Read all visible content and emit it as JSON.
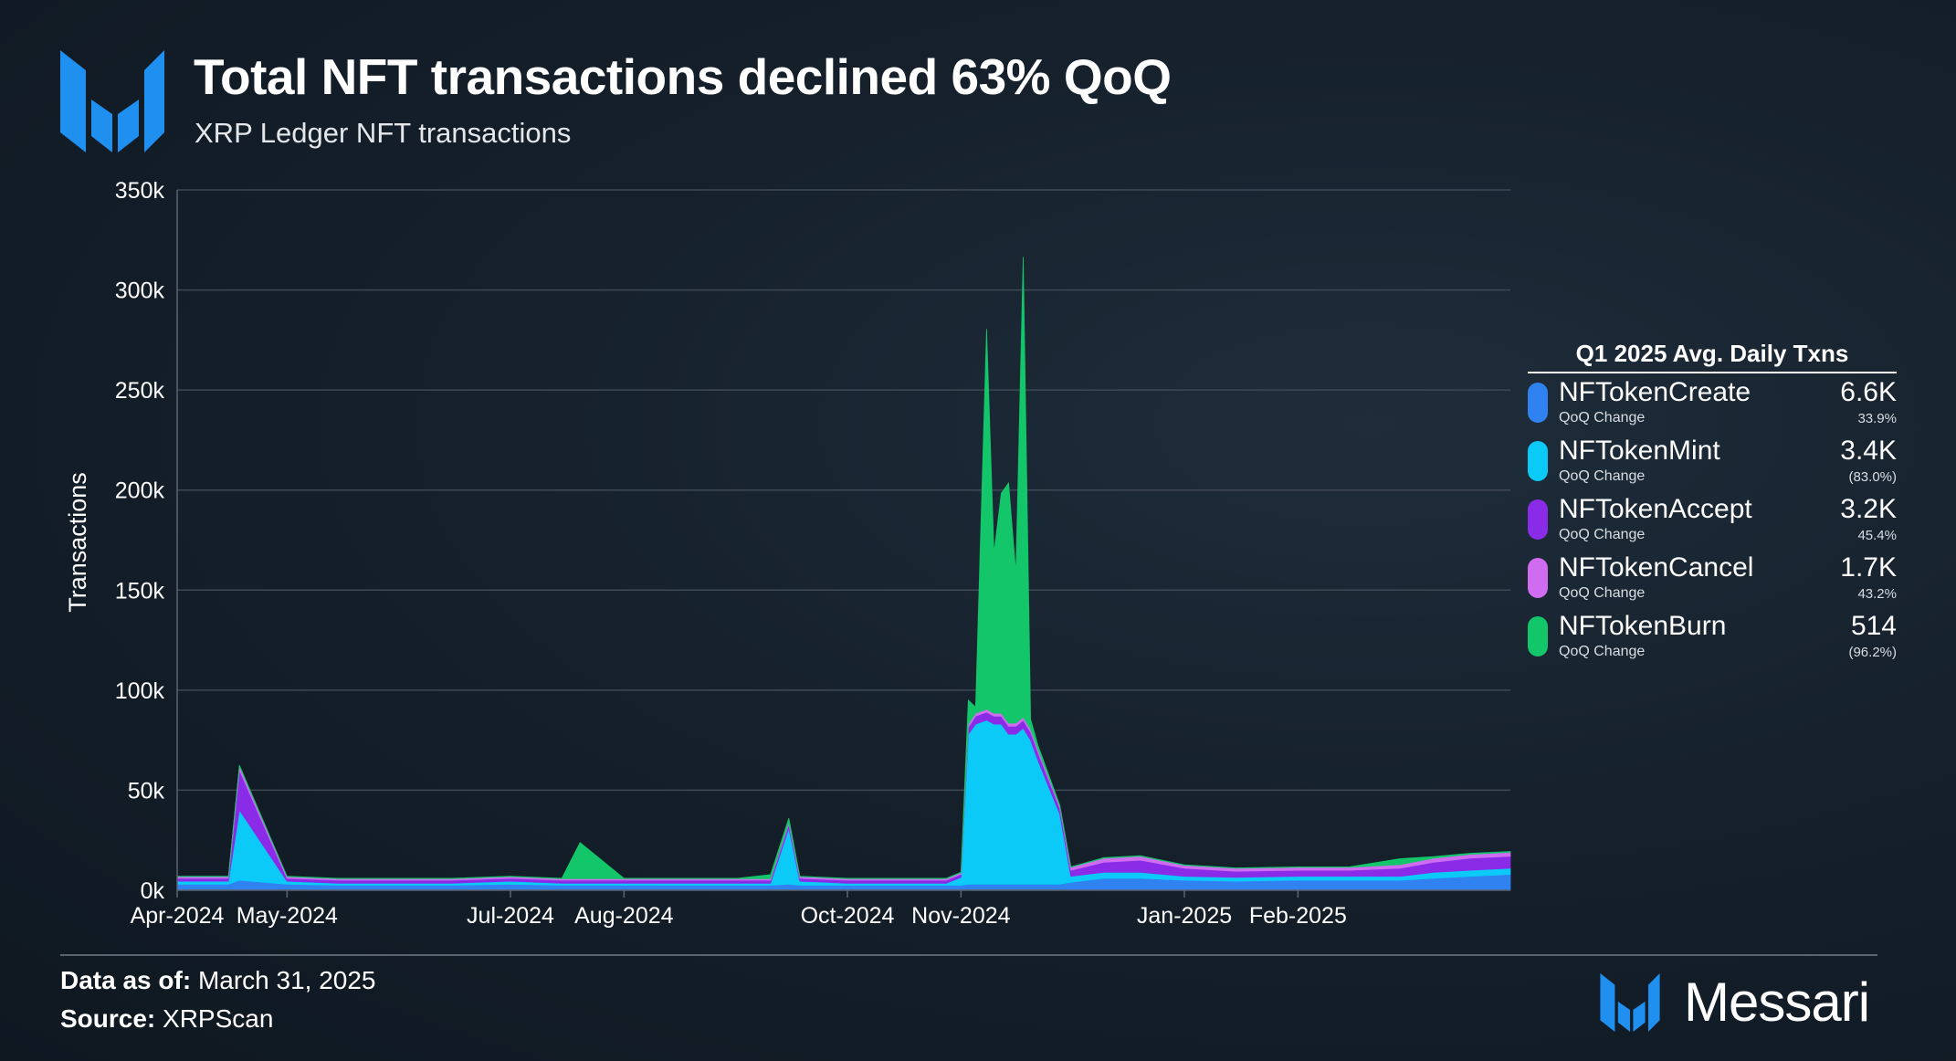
{
  "header": {
    "title": "Total NFT transactions declined 63% QoQ",
    "subtitle": "XRP Ledger NFT transactions"
  },
  "legend": {
    "heading": "Q1 2025 Avg. Daily Txns",
    "items": [
      {
        "name": "NFTokenCreate",
        "sub": "QoQ Change",
        "value": "6.6K",
        "change": "33.9%",
        "color": "#2f82f0"
      },
      {
        "name": "NFTokenMint",
        "sub": "QoQ Change",
        "value": "3.4K",
        "change": "(83.0%)",
        "color": "#0ccaf8"
      },
      {
        "name": "NFTokenAccept",
        "sub": "QoQ Change",
        "value": "3.2K",
        "change": "45.4%",
        "color": "#8a2be8"
      },
      {
        "name": "NFTokenCancel",
        "sub": "QoQ Change",
        "value": "1.7K",
        "change": "43.2%",
        "color": "#cf6cf0"
      },
      {
        "name": "NFTokenBurn",
        "sub": "QoQ Change",
        "value": "514",
        "change": "(96.2%)",
        "color": "#13c66a"
      }
    ]
  },
  "footer": {
    "data_label": "Data as of:",
    "data_value": "March 31, 2025",
    "source_label": "Source:",
    "source_value": "XRPScan",
    "brand": "Messari"
  },
  "chart_data": {
    "type": "area",
    "stacked": true,
    "ylabel": "Transactions",
    "ylim": [
      0,
      350000
    ],
    "yticks": [
      0,
      50000,
      100000,
      150000,
      200000,
      250000,
      300000,
      350000
    ],
    "ytick_labels": [
      "0k",
      "50k",
      "100k",
      "150k",
      "200k",
      "250k",
      "300k",
      "350k"
    ],
    "xrange": [
      "2024-04-01",
      "2025-03-31"
    ],
    "xticks": [
      "2024-04-01",
      "2024-05-01",
      "2024-07-01",
      "2024-08-01",
      "2024-10-01",
      "2024-11-01",
      "2025-01-01",
      "2025-02-01"
    ],
    "xtick_labels": [
      "Apr-2024",
      "May-2024",
      "Jul-2024",
      "Aug-2024",
      "Oct-2024",
      "Nov-2024",
      "Jan-2025",
      "Feb-2025"
    ],
    "grid": true,
    "legend_position": "right",
    "x": [
      "2024-04-01",
      "2024-04-15",
      "2024-04-18",
      "2024-05-01",
      "2024-05-15",
      "2024-06-01",
      "2024-06-15",
      "2024-07-01",
      "2024-07-15",
      "2024-07-20",
      "2024-08-01",
      "2024-08-15",
      "2024-08-25",
      "2024-09-01",
      "2024-09-10",
      "2024-09-15",
      "2024-09-18",
      "2024-10-01",
      "2024-10-15",
      "2024-10-28",
      "2024-11-01",
      "2024-11-03",
      "2024-11-05",
      "2024-11-08",
      "2024-11-10",
      "2024-11-12",
      "2024-11-14",
      "2024-11-16",
      "2024-11-18",
      "2024-11-20",
      "2024-11-22",
      "2024-11-28",
      "2024-12-01",
      "2024-12-10",
      "2024-12-20",
      "2025-01-01",
      "2025-01-15",
      "2025-02-01",
      "2025-02-15",
      "2025-03-01",
      "2025-03-10",
      "2025-03-20",
      "2025-03-31"
    ],
    "series": [
      {
        "name": "NFTokenCreate",
        "color": "#2f82f0",
        "values": [
          3000,
          3000,
          5000,
          3000,
          2500,
          2500,
          2500,
          3000,
          2500,
          2500,
          2500,
          2500,
          2500,
          2500,
          2500,
          3000,
          2500,
          2500,
          2500,
          2500,
          2500,
          3000,
          3000,
          3000,
          3000,
          3000,
          3000,
          3000,
          3000,
          3000,
          3000,
          3000,
          4000,
          6000,
          6000,
          5000,
          4500,
          5000,
          5000,
          5000,
          6000,
          7000,
          8000
        ]
      },
      {
        "name": "NFTokenMint",
        "color": "#0ccaf8",
        "values": [
          1500,
          1500,
          35000,
          1500,
          1000,
          1000,
          1000,
          1500,
          1000,
          1000,
          1000,
          1000,
          1000,
          1000,
          1000,
          28000,
          2000,
          1000,
          1000,
          1000,
          4000,
          75000,
          80000,
          82000,
          80000,
          80000,
          75000,
          75000,
          78000,
          72000,
          62000,
          35000,
          3000,
          3000,
          3000,
          2000,
          2000,
          2000,
          2000,
          2000,
          3000,
          3000,
          3000
        ]
      },
      {
        "name": "NFTokenAccept",
        "color": "#8a2be8",
        "values": [
          1500,
          1500,
          20000,
          1500,
          1500,
          1500,
          1500,
          1500,
          1500,
          1500,
          1500,
          1500,
          1500,
          1500,
          1500,
          2000,
          1500,
          1500,
          1500,
          1500,
          1500,
          3500,
          4000,
          4000,
          4000,
          4000,
          4000,
          4000,
          4000,
          4000,
          4000,
          3000,
          3000,
          5000,
          6000,
          4000,
          3000,
          3000,
          3000,
          4000,
          5000,
          6000,
          6000
        ]
      },
      {
        "name": "NFTokenCancel",
        "color": "#cf6cf0",
        "values": [
          800,
          800,
          2000,
          800,
          800,
          800,
          800,
          800,
          800,
          800,
          800,
          800,
          800,
          800,
          800,
          1000,
          800,
          800,
          800,
          800,
          800,
          1500,
          1500,
          1500,
          1500,
          1500,
          1500,
          1500,
          1500,
          1500,
          1500,
          1000,
          1500,
          2000,
          2000,
          1500,
          1500,
          1500,
          1500,
          1800,
          2000,
          2000,
          2000
        ]
      },
      {
        "name": "NFTokenBurn",
        "color": "#13c66a",
        "values": [
          200,
          200,
          500,
          200,
          200,
          200,
          200,
          200,
          200,
          18000,
          200,
          200,
          200,
          200,
          2000,
          2000,
          200,
          200,
          200,
          200,
          200,
          12000,
          3000,
          190000,
          80000,
          110000,
          120000,
          75000,
          230000,
          5000,
          2000,
          500,
          200,
          300,
          300,
          200,
          200,
          200,
          200,
          3000,
          800,
          500,
          400
        ]
      }
    ]
  }
}
